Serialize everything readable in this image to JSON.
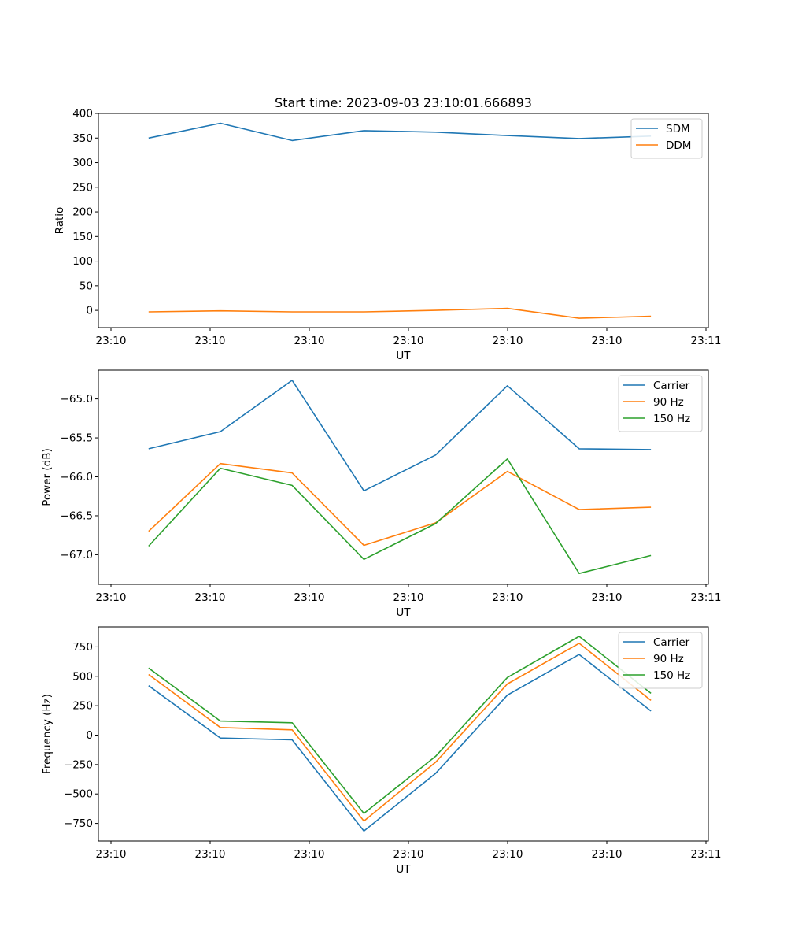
{
  "figure_title": "Start time: 2023-09-03 23:10:01.666893",
  "chart_data": [
    {
      "type": "line",
      "title": "Start time: 2023-09-03 23:10:01.666893",
      "xlabel": "UT",
      "ylabel": "Ratio",
      "x": [
        0.5,
        1.5,
        2.5,
        3.5,
        4.5,
        5.5,
        6.5,
        7.5
      ],
      "x_tick_labels": [
        "23:10",
        "23:10",
        "23:10",
        "23:10",
        "23:10",
        "23:10",
        "23:11"
      ],
      "y_ticks": [
        0,
        50,
        100,
        150,
        200,
        250,
        300,
        350,
        400
      ],
      "y_tick_labels": [
        "0",
        "50",
        "100",
        "150",
        "200",
        "250",
        "300",
        "350",
        "400"
      ],
      "xlim": [
        -0.2,
        8.3
      ],
      "ylim": [
        -35,
        400
      ],
      "legend_position": "top-right",
      "series": [
        {
          "name": "SDM",
          "color": "#1f77b4",
          "values": [
            350,
            380,
            345,
            365,
            362,
            355,
            349,
            354
          ]
        },
        {
          "name": "DDM",
          "color": "#ff7f0e",
          "values": [
            -3,
            -1,
            -3,
            -3,
            0,
            4,
            -16,
            -12
          ]
        }
      ]
    },
    {
      "type": "line",
      "title": "",
      "xlabel": "UT",
      "ylabel": "Power (dB)",
      "x": [
        0.5,
        1.5,
        2.5,
        3.5,
        4.5,
        5.5,
        6.5,
        7.5
      ],
      "x_tick_labels": [
        "23:10",
        "23:10",
        "23:10",
        "23:10",
        "23:10",
        "23:10",
        "23:11"
      ],
      "y_ticks": [
        -67.0,
        -66.5,
        -66.0,
        -65.5,
        -65.0
      ],
      "y_tick_labels": [
        "−67.0",
        "−66.5",
        "−66.0",
        "−65.5",
        "−65.0"
      ],
      "xlim": [
        -0.2,
        8.3
      ],
      "ylim": [
        -67.38,
        -64.63
      ],
      "legend_position": "top-right",
      "series": [
        {
          "name": "Carrier",
          "color": "#1f77b4",
          "values": [
            -65.64,
            -65.42,
            -64.76,
            -66.18,
            -65.72,
            -64.83,
            -65.64,
            -65.65
          ]
        },
        {
          "name": "90 Hz",
          "color": "#ff7f0e",
          "values": [
            -66.7,
            -65.83,
            -65.95,
            -66.88,
            -66.59,
            -65.93,
            -66.42,
            -66.39
          ]
        },
        {
          "name": "150 Hz",
          "color": "#2ca02c",
          "values": [
            -66.89,
            -65.89,
            -66.11,
            -67.06,
            -66.6,
            -65.77,
            -67.24,
            -67.01
          ]
        }
      ]
    },
    {
      "type": "line",
      "title": "",
      "xlabel": "UT",
      "ylabel": "Frequency (Hz)",
      "x": [
        0.5,
        1.5,
        2.5,
        3.5,
        4.5,
        5.5,
        6.5,
        7.5
      ],
      "x_tick_labels": [
        "23:10",
        "23:10",
        "23:10",
        "23:10",
        "23:10",
        "23:10",
        "23:11"
      ],
      "y_ticks": [
        -750,
        -500,
        -250,
        0,
        250,
        500,
        750
      ],
      "y_tick_labels": [
        "−750",
        "−500",
        "−250",
        "0",
        "250",
        "500",
        "750"
      ],
      "xlim": [
        -0.2,
        8.3
      ],
      "ylim": [
        -900,
        920
      ],
      "legend_position": "top-right",
      "series": [
        {
          "name": "Carrier",
          "color": "#1f77b4",
          "values": [
            420,
            -25,
            -40,
            -815,
            -325,
            340,
            685,
            205
          ]
        },
        {
          "name": "90 Hz",
          "color": "#ff7f0e",
          "values": [
            515,
            65,
            45,
            -730,
            -230,
            435,
            780,
            295
          ]
        },
        {
          "name": "150 Hz",
          "color": "#2ca02c",
          "values": [
            570,
            120,
            105,
            -665,
            -180,
            490,
            840,
            355
          ]
        }
      ]
    }
  ]
}
